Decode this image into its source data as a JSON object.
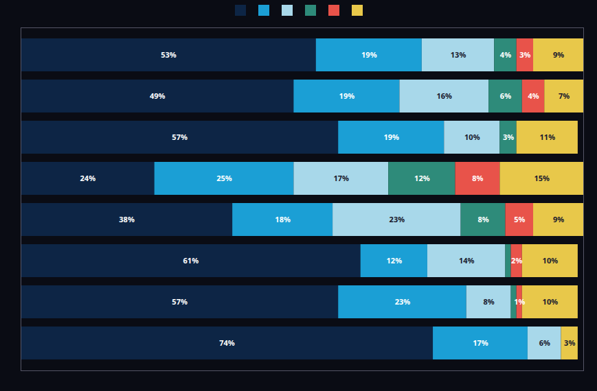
{
  "chart_data": {
    "type": "bar",
    "orientation": "horizontal",
    "stacked": true,
    "data_labels": true,
    "tick_labels": false,
    "legend": "top",
    "categories": [
      null,
      null,
      null,
      null,
      null,
      null,
      null,
      null
    ],
    "xlim": [
      0,
      101
    ],
    "series": [
      {
        "color": "#0d2545",
        "values": [
          53,
          49,
          57,
          24,
          38,
          61,
          57,
          74
        ],
        "value_labels": [
          "53%",
          "49%",
          "57%",
          "24%",
          "38%",
          "61%",
          "57%",
          "74%"
        ]
      },
      {
        "color": "#1b9fd5",
        "values": [
          19,
          19,
          19,
          25,
          18,
          12,
          23,
          17
        ],
        "value_labels": [
          "19%",
          "19%",
          "19%",
          "25%",
          "18%",
          "12%",
          "23%",
          "17%"
        ]
      },
      {
        "color": "#a8d8ea",
        "values": [
          13,
          16,
          10,
          17,
          23,
          14,
          8,
          6
        ],
        "value_labels": [
          "13%",
          "16%",
          "10%",
          "17%",
          "23%",
          "14%",
          "8%",
          "6%"
        ]
      },
      {
        "color": "#2e8b7a",
        "values": [
          4,
          6,
          3,
          12,
          8,
          1,
          1,
          0
        ],
        "value_labels": [
          "4%",
          "6%",
          "3%",
          "12%",
          "8%",
          null,
          null,
          null
        ]
      },
      {
        "color": "#e8534a",
        "values": [
          3,
          4,
          0,
          8,
          5,
          2,
          1,
          0
        ],
        "value_labels": [
          "3%",
          "4%",
          null,
          "8%",
          "5%",
          "2%",
          "1%",
          null
        ]
      },
      {
        "color": "#e8c84a",
        "values": [
          9,
          7,
          11,
          15,
          9,
          10,
          10,
          3
        ],
        "value_labels": [
          "9%",
          "7%",
          "11%",
          "15%",
          "9%",
          "10%",
          "10%",
          "3%"
        ]
      }
    ]
  }
}
